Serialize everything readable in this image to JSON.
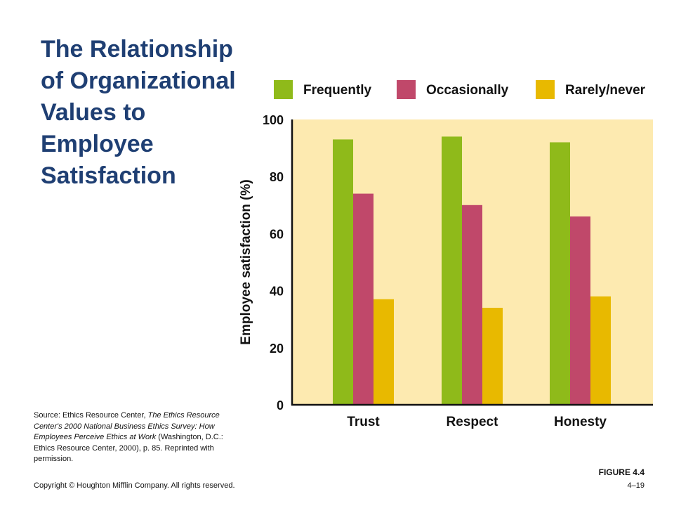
{
  "slide": {
    "title_lines": [
      "The Relationship",
      "of Organizational",
      "Values to",
      "Employee",
      "Satisfaction"
    ],
    "source": {
      "prefix": "Source: Ethics Resource Center, ",
      "italic1": "The Ethics Resource Center's 2000 National Business Ethics Survey: How Employees Perceive Ethics at Work",
      "suffix": " (Washington, D.C.: Ethics Resource Center, 2000), p. 85. Reprinted with permission."
    },
    "figure_label": "FIGURE 4.4",
    "copyright": "Copyright © Houghton Mifflin Company. All rights reserved.",
    "page_number": "4–19"
  },
  "colors": {
    "title": "#1f3f73",
    "plot_background": "#fdeab0",
    "axis": "#111111"
  },
  "chart_data": {
    "type": "bar",
    "title": "",
    "xlabel": "",
    "ylabel": "Employee satisfaction (%)",
    "ylim": [
      0,
      100
    ],
    "yticks": [
      0,
      20,
      40,
      60,
      80,
      100
    ],
    "categories": [
      "Trust",
      "Respect",
      "Honesty"
    ],
    "series": [
      {
        "name": "Frequently",
        "color": "#8fba1a",
        "values": [
          93,
          94,
          92
        ]
      },
      {
        "name": "Occasionally",
        "color": "#c0486a",
        "values": [
          74,
          70,
          66
        ]
      },
      {
        "name": "Rarely/never",
        "color": "#e8b900",
        "values": [
          37,
          34,
          38
        ]
      }
    ],
    "legend_position": "top",
    "grid": false
  }
}
